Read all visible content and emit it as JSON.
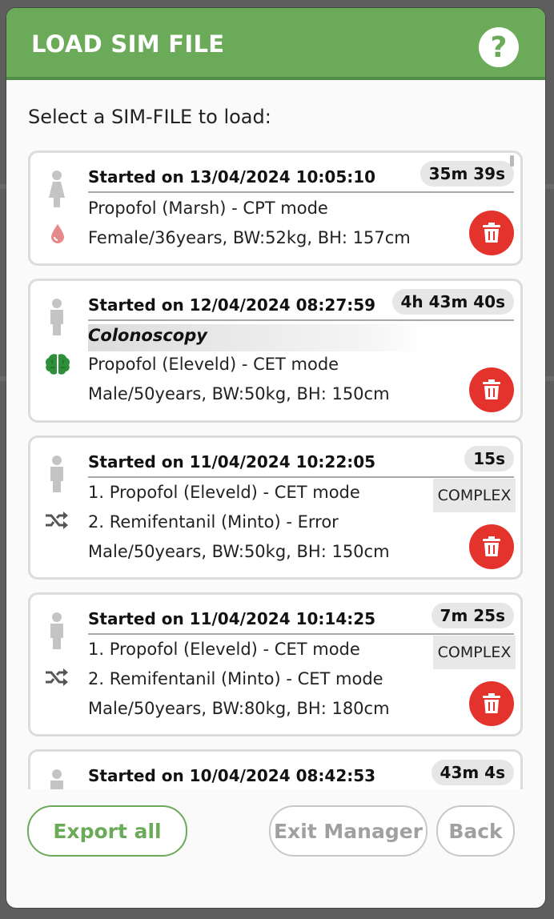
{
  "dialog": {
    "title": "LOAD SIM FILE",
    "help_glyph": "?",
    "prompt": "Select a SIM-FILE to load:",
    "accent_color": "#6aaa59",
    "danger_color": "#e4332c"
  },
  "files": [
    {
      "started": "Started on 13/04/2024 10:05:10",
      "duration": "35m 39s",
      "patient_icon": "female-person-icon",
      "category_icon": "blood-drop-icon",
      "lines": [
        "Propofol (Marsh) - CPT mode",
        "Female/36years, BW:52kg, BH: 157cm"
      ]
    },
    {
      "started": "Started on 12/04/2024 08:27:59",
      "duration": "4h 43m 40s",
      "patient_icon": "male-person-icon",
      "category_icon": "brain-icon",
      "label": "Colonoscopy",
      "lines": [
        "Propofol (Eleveld) - CET mode",
        "Male/50years, BW:50kg, BH: 150cm"
      ]
    },
    {
      "started": "Started on 11/04/2024 10:22:05",
      "duration": "15s",
      "patient_icon": "male-person-icon",
      "category_icon": "shuffle-icon",
      "badge": "COMPLEX",
      "lines": [
        "1. Propofol (Eleveld) - CET mode",
        "2. Remifentanil (Minto) - Error",
        "Male/50years, BW:50kg, BH: 150cm"
      ]
    },
    {
      "started": "Started on 11/04/2024 10:14:25",
      "duration": "7m 25s",
      "patient_icon": "male-person-icon",
      "category_icon": "shuffle-icon",
      "badge": "COMPLEX",
      "lines": [
        "1. Propofol (Eleveld) - CET mode",
        "2. Remifentanil (Minto) - CET mode",
        "Male/50years, BW:80kg, BH: 180cm"
      ]
    },
    {
      "started": "Started on 10/04/2024 08:42:53",
      "duration": "43m 4s",
      "patient_icon": "male-person-icon"
    }
  ],
  "footer": {
    "export_label": "Export all",
    "exit_label": "Exit Manager",
    "back_label": "Back"
  }
}
